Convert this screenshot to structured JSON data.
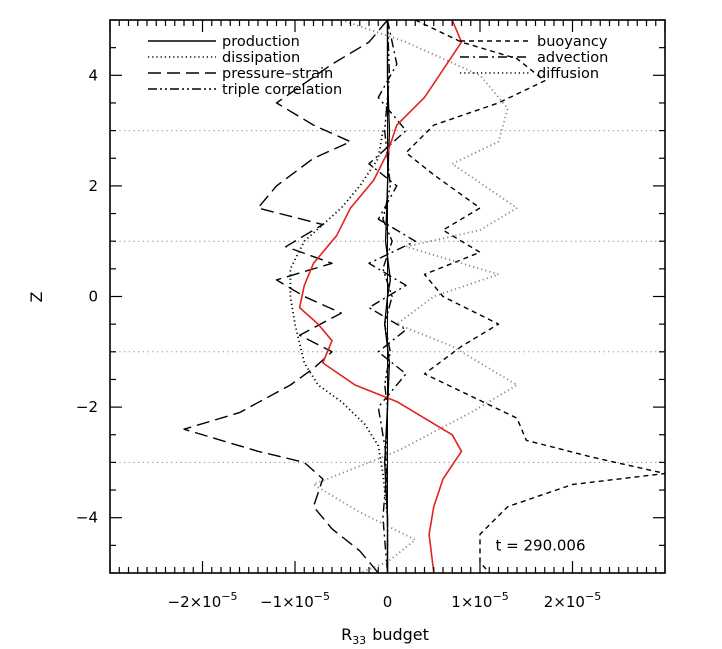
{
  "chart_data": {
    "type": "line",
    "title": "",
    "xlabel": "R",
    "xlabel_sub": "33",
    "xlabel_suffix": "budget",
    "ylabel": "Z",
    "xlim": [
      -3e-05,
      3e-05
    ],
    "ylim": [
      -5,
      5
    ],
    "x_ticks": [
      {
        "value": -2e-05,
        "mant": "−2×10",
        "exp": "−5"
      },
      {
        "value": -1e-05,
        "mant": "−1×10",
        "exp": "−5"
      },
      {
        "value": 0,
        "mant": "0",
        "exp": ""
      },
      {
        "value": 1e-05,
        "mant": "1×10",
        "exp": "−5"
      },
      {
        "value": 2e-05,
        "mant": "2×10",
        "exp": "−5"
      }
    ],
    "y_ticks": [
      {
        "value": -4,
        "label": "−4"
      },
      {
        "value": -2,
        "label": "−2"
      },
      {
        "value": 0,
        "label": "0"
      },
      {
        "value": 2,
        "label": "2"
      },
      {
        "value": 4,
        "label": "4"
      }
    ],
    "gridlines_y": [
      3,
      1,
      -1,
      -3
    ],
    "gridline_style": "dotted gray horizontal",
    "legend": {
      "placement": "top",
      "columns": 2
    },
    "annotations": [
      {
        "text": "t = 290.006",
        "x": 1.6e-05,
        "y": -4.5
      }
    ],
    "series": [
      {
        "name": "production",
        "style": "solid",
        "color": "#000000",
        "legend_col": 0,
        "points": [
          [
            0,
            5
          ],
          [
            0,
            4
          ],
          [
            2e-07,
            3
          ],
          [
            0,
            2
          ],
          [
            -2e-07,
            1
          ],
          [
            3e-07,
            0.3
          ],
          [
            0,
            0
          ],
          [
            -3e-07,
            -0.5
          ],
          [
            2e-07,
            -1.2
          ],
          [
            0,
            -2
          ],
          [
            -3e-07,
            -3
          ],
          [
            0,
            -4
          ],
          [
            0,
            -5
          ]
        ]
      },
      {
        "name": "dissipation",
        "style": "dotted",
        "color": "#000000",
        "legend_col": 0,
        "points": [
          [
            -5e-07,
            3
          ],
          [
            -1e-06,
            2.5
          ],
          [
            -3e-06,
            2
          ],
          [
            -5e-06,
            1.6
          ],
          [
            -7e-06,
            1.3
          ],
          [
            -9e-06,
            1
          ],
          [
            -1.05e-05,
            0.5
          ],
          [
            -1.05e-05,
            0
          ],
          [
            -1e-05,
            -0.5
          ],
          [
            -9e-06,
            -1.2
          ],
          [
            -7.5e-06,
            -1.6
          ],
          [
            -5e-06,
            -1.9
          ],
          [
            -2.5e-06,
            -2.3
          ],
          [
            -1e-06,
            -2.7
          ],
          [
            -5e-07,
            -3.2
          ],
          [
            0,
            -4
          ]
        ]
      },
      {
        "name": "pressure–strain",
        "style": "longdash",
        "color": "#000000",
        "legend_col": 0,
        "points": [
          [
            0,
            5
          ],
          [
            -2e-06,
            4.6
          ],
          [
            -6e-06,
            4.2
          ],
          [
            -1.2e-05,
            3.5
          ],
          [
            -8e-06,
            3.1
          ],
          [
            -4e-06,
            2.8
          ],
          [
            -8e-06,
            2.5
          ],
          [
            -1.2e-05,
            2
          ],
          [
            -1.4e-05,
            1.6
          ],
          [
            -7e-06,
            1.3
          ],
          [
            -1.1e-05,
            0.9
          ],
          [
            -6e-06,
            0.6
          ],
          [
            -1.2e-05,
            0.3
          ],
          [
            -9e-06,
            0
          ],
          [
            -5e-06,
            -0.3
          ],
          [
            -9.5e-06,
            -0.7
          ],
          [
            -6e-06,
            -1
          ],
          [
            -8e-06,
            -1.3
          ],
          [
            -1.05e-05,
            -1.6
          ],
          [
            -1.6e-05,
            -2.1
          ],
          [
            -2.2e-05,
            -2.4
          ],
          [
            -1.8e-05,
            -2.6
          ],
          [
            -1.4e-05,
            -2.8
          ],
          [
            -9e-06,
            -3
          ],
          [
            -7e-06,
            -3.3
          ],
          [
            -8e-06,
            -3.8
          ],
          [
            -6e-06,
            -4.2
          ],
          [
            -3e-06,
            -4.6
          ],
          [
            -1e-06,
            -5
          ]
        ]
      },
      {
        "name": "triple correlation",
        "style": "dashdotdot",
        "color": "#000000",
        "legend_col": 0,
        "points": [
          [
            0,
            5
          ],
          [
            2e-07,
            4
          ],
          [
            -3e-07,
            3
          ],
          [
            3e-07,
            2
          ],
          [
            -5e-07,
            1.4
          ],
          [
            5e-07,
            1
          ],
          [
            -5e-07,
            0.5
          ],
          [
            5e-07,
            0
          ],
          [
            -3e-07,
            -0.5
          ],
          [
            3e-07,
            -1
          ],
          [
            -3e-07,
            -1.6
          ],
          [
            0,
            -2
          ],
          [
            -2e-07,
            -3
          ],
          [
            0,
            -4
          ],
          [
            0,
            -5
          ]
        ]
      },
      {
        "name": "buoyancy",
        "style": "shortdash",
        "color": "#000000",
        "legend_col": 1,
        "points": [
          [
            3e-06,
            5
          ],
          [
            8e-06,
            4.6
          ],
          [
            1.4e-05,
            4.3
          ],
          [
            1.7e-05,
            3.9
          ],
          [
            1.2e-05,
            3.5
          ],
          [
            5e-06,
            3.1
          ],
          [
            2e-06,
            2.6
          ],
          [
            5e-06,
            2.2
          ],
          [
            1e-05,
            1.6
          ],
          [
            6e-06,
            1.2
          ],
          [
            1e-05,
            0.8
          ],
          [
            4e-06,
            0.4
          ],
          [
            6e-06,
            0
          ],
          [
            1.2e-05,
            -0.5
          ],
          [
            8e-06,
            -0.9
          ],
          [
            4e-06,
            -1.4
          ],
          [
            9e-06,
            -1.8
          ],
          [
            1.4e-05,
            -2.2
          ],
          [
            1.5e-05,
            -2.6
          ],
          [
            2.2e-05,
            -2.9
          ],
          [
            3e-05,
            -3.2
          ],
          [
            2e-05,
            -3.4
          ],
          [
            1.3e-05,
            -3.8
          ],
          [
            1e-05,
            -4.3
          ],
          [
            1e-05,
            -4.8
          ],
          [
            1.1e-05,
            -5
          ]
        ]
      },
      {
        "name": "advection",
        "style": "dashdot",
        "color": "#000000",
        "legend_col": 1,
        "points": [
          [
            0,
            5
          ],
          [
            1e-06,
            4.2
          ],
          [
            -1e-06,
            3.6
          ],
          [
            2e-06,
            3
          ],
          [
            -2e-06,
            2.4
          ],
          [
            1e-06,
            2
          ],
          [
            -1e-06,
            1.4
          ],
          [
            3e-06,
            1
          ],
          [
            -2e-06,
            0.6
          ],
          [
            2e-06,
            0.2
          ],
          [
            -2e-06,
            -0.2
          ],
          [
            2e-06,
            -0.6
          ],
          [
            -1e-06,
            -1
          ],
          [
            2e-06,
            -1.4
          ],
          [
            -1e-06,
            -2
          ],
          [
            0,
            -3
          ],
          [
            -5e-07,
            -4
          ],
          [
            0,
            -5
          ]
        ]
      },
      {
        "name": "diffusion",
        "style": "dotted",
        "color": "#888888",
        "legend_col": 1,
        "points": [
          [
            -5e-06,
            5
          ],
          [
            2e-06,
            4.6
          ],
          [
            1e-05,
            4
          ],
          [
            1.3e-05,
            3.4
          ],
          [
            1.2e-05,
            2.8
          ],
          [
            7e-06,
            2.4
          ],
          [
            1.4e-05,
            1.6
          ],
          [
            1e-05,
            1.2
          ],
          [
            2e-06,
            0.9
          ],
          [
            1.2e-05,
            0.4
          ],
          [
            5e-06,
            0
          ],
          [
            1e-06,
            -0.5
          ],
          [
            7e-06,
            -0.9
          ],
          [
            1.4e-05,
            -1.6
          ],
          [
            9e-06,
            -2.1
          ],
          [
            1e-06,
            -2.8
          ],
          [
            -8e-06,
            -3.4
          ],
          [
            -3e-06,
            -3.9
          ],
          [
            3e-06,
            -4.4
          ],
          [
            0,
            -4.8
          ],
          [
            -3e-06,
            -5
          ]
        ]
      },
      {
        "name": "",
        "style": "solid",
        "color": "#e32222",
        "legend_col": -1,
        "points": [
          [
            7e-06,
            5
          ],
          [
            8e-06,
            4.6
          ],
          [
            6e-06,
            4.1
          ],
          [
            4e-06,
            3.6
          ],
          [
            1e-06,
            3.1
          ],
          [
            0,
            2.6
          ],
          [
            -1.5e-06,
            2.1
          ],
          [
            -4e-06,
            1.6
          ],
          [
            -5.5e-06,
            1.1
          ],
          [
            -8e-06,
            0.6
          ],
          [
            -9e-06,
            0.2
          ],
          [
            -9.5e-06,
            -0.2
          ],
          [
            -7.5e-06,
            -0.5
          ],
          [
            -6e-06,
            -0.8
          ],
          [
            -7e-06,
            -1.2
          ],
          [
            -3.5e-06,
            -1.6
          ],
          [
            1e-06,
            -1.9
          ],
          [
            4e-06,
            -2.2
          ],
          [
            7e-06,
            -2.5
          ],
          [
            8e-06,
            -2.8
          ],
          [
            6e-06,
            -3.3
          ],
          [
            5e-06,
            -3.8
          ],
          [
            4.5e-06,
            -4.3
          ],
          [
            5e-06,
            -5
          ]
        ]
      }
    ]
  }
}
